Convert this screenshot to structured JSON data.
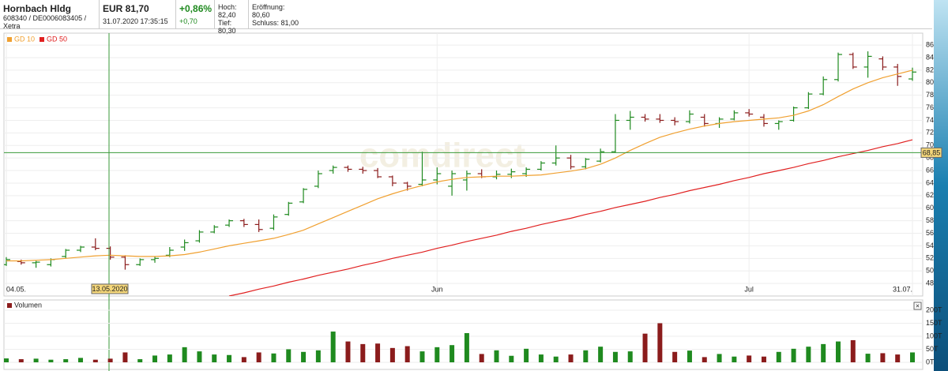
{
  "header": {
    "name": "Hornbach Hldg",
    "ids": "608340 / DE0006083405 / Xetra",
    "price": "EUR 81,70",
    "timestamp": "31.07.2020 17:35:15",
    "change_pct": "+0,86%",
    "change_abs": "+0,70",
    "high": "Hoch: 82,40",
    "low": "Tief: 80,30",
    "open": "Eröffnung: 80,60",
    "close": "Schluss: 81,00"
  },
  "watermark": "comdirect",
  "chart_data": [
    {
      "type": "ohlc",
      "categories": [
        "04.05.",
        null,
        null,
        null,
        null,
        null,
        null,
        null,
        null,
        null,
        null,
        null,
        null,
        null,
        null,
        null,
        null,
        null,
        null,
        null,
        null,
        null,
        null,
        null,
        null,
        null,
        null,
        null,
        null,
        "Jun",
        null,
        null,
        null,
        null,
        null,
        null,
        null,
        null,
        null,
        null,
        null,
        null,
        null,
        null,
        null,
        null,
        null,
        null,
        null,
        null,
        "Jul",
        null,
        null,
        null,
        null,
        null,
        null,
        null,
        null,
        null,
        null,
        "31.07."
      ],
      "open": [
        51.0,
        51.5,
        51.3,
        51.0,
        52.3,
        53.3,
        53.8,
        53.6,
        52.2,
        51.0,
        51.8,
        52.5,
        53.8,
        54.8,
        56.2,
        57.3,
        58.0,
        57.4,
        56.8,
        59.0,
        61.0,
        63.5,
        66.0,
        66.5,
        66.2,
        66.0,
        65.0,
        64.0,
        63.8,
        64.5,
        63.5,
        64.5,
        65.5,
        65.0,
        65.4,
        65.5,
        66.2,
        67.2,
        68.0,
        66.6,
        67.5,
        69.0,
        74.0,
        74.5,
        74.2,
        74.0,
        73.8,
        74.5,
        73.5,
        74.2,
        75.2,
        74.5,
        73.5,
        74.0,
        76.0,
        78.2,
        80.5,
        84.5,
        82.5,
        83.8,
        82.5,
        80.6
      ],
      "high": [
        52.2,
        51.8,
        51.6,
        52.0,
        53.5,
        54.0,
        55.2,
        53.9,
        52.5,
        52.0,
        52.3,
        53.8,
        55.0,
        56.5,
        57.3,
        58.2,
        58.3,
        58.2,
        59.0,
        61.0,
        63.2,
        66.0,
        66.8,
        66.8,
        66.6,
        66.4,
        65.2,
        64.2,
        69.0,
        66.5,
        66.0,
        66.0,
        66.2,
        66.0,
        66.3,
        66.5,
        67.5,
        70.0,
        68.5,
        68.0,
        69.5,
        75.0,
        75.5,
        75.0,
        75.0,
        74.5,
        75.6,
        75.0,
        74.5,
        75.6,
        75.8,
        75.0,
        74.0,
        76.2,
        78.5,
        81.0,
        84.8,
        84.8,
        85.0,
        84.2,
        83.0,
        82.4
      ],
      "low": [
        50.8,
        51.0,
        50.5,
        50.7,
        52.0,
        53.0,
        53.3,
        51.8,
        50.2,
        50.8,
        51.3,
        52.2,
        53.2,
        54.5,
        56.0,
        57.0,
        57.0,
        56.2,
        56.5,
        58.8,
        60.8,
        63.2,
        65.5,
        65.8,
        65.5,
        64.8,
        63.5,
        62.8,
        63.5,
        63.8,
        62.0,
        62.8,
        64.8,
        64.6,
        64.8,
        65.0,
        66.0,
        66.8,
        66.2,
        66.2,
        67.3,
        68.8,
        72.5,
        73.8,
        73.6,
        73.2,
        73.5,
        73.0,
        72.8,
        74.0,
        74.6,
        73.0,
        72.5,
        73.8,
        75.8,
        78.0,
        80.2,
        82.2,
        80.8,
        82.0,
        79.5,
        80.3
      ],
      "close": [
        51.8,
        51.3,
        51.4,
        51.8,
        53.3,
        53.8,
        53.6,
        52.2,
        51.0,
        51.8,
        52.0,
        53.3,
        54.5,
        56.2,
        57.0,
        58.0,
        57.4,
        56.6,
        58.6,
        60.8,
        63.0,
        65.5,
        66.5,
        66.2,
        66.0,
        65.0,
        64.0,
        63.5,
        64.5,
        65.5,
        65.5,
        65.5,
        65.0,
        65.4,
        65.8,
        66.2,
        67.2,
        68.0,
        66.6,
        67.8,
        69.0,
        74.0,
        74.5,
        74.2,
        74.0,
        73.8,
        75.0,
        73.5,
        74.2,
        75.2,
        75.0,
        73.5,
        73.8,
        76.0,
        78.2,
        80.5,
        84.5,
        82.5,
        84.2,
        82.5,
        81.0,
        81.7
      ],
      "up_color": "#1f8a1f",
      "down_color": "#8b1c1c",
      "lines": [
        {
          "name": "GD 10",
          "color": "#f0a030",
          "values": [
            51.6,
            51.6,
            51.7,
            51.8,
            52.0,
            52.2,
            52.4,
            52.5,
            52.4,
            52.3,
            52.3,
            52.4,
            52.6,
            53.0,
            53.5,
            54.0,
            54.4,
            54.8,
            55.2,
            55.8,
            56.5,
            57.5,
            58.5,
            59.5,
            60.5,
            61.5,
            62.3,
            63.0,
            63.6,
            64.2,
            64.6,
            64.9,
            65.0,
            65.1,
            65.1,
            65.2,
            65.3,
            65.6,
            65.9,
            66.3,
            67.0,
            68.0,
            69.2,
            70.3,
            71.3,
            72.0,
            72.6,
            73.1,
            73.5,
            73.8,
            74.0,
            74.2,
            74.4,
            74.8,
            75.5,
            76.5,
            77.8,
            79.0,
            80.0,
            80.8,
            81.4,
            82.0
          ]
        },
        {
          "name": "GD 50",
          "color": "#e02020",
          "values": [
            null,
            null,
            null,
            null,
            null,
            null,
            null,
            null,
            null,
            null,
            null,
            null,
            null,
            null,
            null,
            46.0,
            46.5,
            47.1,
            47.6,
            48.2,
            48.7,
            49.3,
            49.8,
            50.3,
            50.9,
            51.4,
            52.0,
            52.5,
            53.0,
            53.6,
            54.1,
            54.7,
            55.2,
            55.7,
            56.3,
            56.8,
            57.4,
            57.9,
            58.4,
            59.0,
            59.5,
            60.1,
            60.6,
            61.1,
            61.7,
            62.2,
            62.8,
            63.3,
            63.8,
            64.4,
            64.9,
            65.5,
            66.0,
            66.5,
            67.1,
            67.6,
            68.2,
            68.7,
            69.2,
            69.8,
            70.3,
            70.9
          ]
        }
      ],
      "ylim": [
        46.0,
        87.9
      ],
      "yticks": [
        48,
        50,
        52,
        54,
        56,
        58,
        60,
        62,
        64,
        66,
        68,
        70,
        72,
        74,
        76,
        78,
        80,
        82,
        84,
        86
      ],
      "crosshair": {
        "date": "13.05.2020",
        "price": {
          "value": 68.85,
          "label": "68,85"
        }
      }
    },
    {
      "type": "bar",
      "title": "Volumen",
      "values": [
        15,
        12,
        14,
        10,
        12,
        17,
        10,
        14,
        38,
        12,
        26,
        30,
        58,
        42,
        30,
        28,
        20,
        38,
        34,
        50,
        40,
        46,
        118,
        80,
        70,
        72,
        55,
        62,
        42,
        58,
        66,
        112,
        32,
        46,
        25,
        52,
        30,
        22,
        30,
        46,
        60,
        40,
        42,
        110,
        150,
        40,
        45,
        20,
        32,
        22,
        26,
        22,
        40,
        52,
        60,
        70,
        80,
        85,
        33,
        35,
        30,
        38
      ],
      "ylim": [
        0,
        215
      ],
      "yticks": [
        {
          "value": 0,
          "label": "0T"
        },
        {
          "value": 50,
          "label": "50T"
        },
        {
          "value": 100,
          "label": "100T"
        },
        {
          "value": 150,
          "label": "150T"
        },
        {
          "value": 200,
          "label": "200T"
        }
      ]
    }
  ]
}
